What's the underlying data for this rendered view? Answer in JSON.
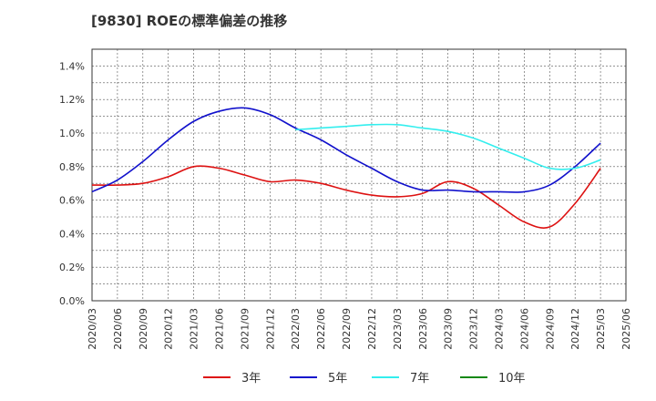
{
  "chart_data": {
    "type": "line",
    "title": "[9830]  ROEの標準偏差の推移",
    "xlabel": "",
    "ylabel": "",
    "ylim": [
      0,
      1.5
    ],
    "y_ticks": [
      "0.0%",
      "0.2%",
      "0.4%",
      "0.6%",
      "0.8%",
      "1.0%",
      "1.2%",
      "1.4%"
    ],
    "x_ticks": [
      "2020/03",
      "2020/06",
      "2020/09",
      "2020/12",
      "2021/03",
      "2021/06",
      "2021/09",
      "2021/12",
      "2022/03",
      "2022/06",
      "2022/09",
      "2022/12",
      "2023/03",
      "2023/06",
      "2023/09",
      "2023/12",
      "2024/03",
      "2024/06",
      "2024/09",
      "2024/12",
      "2025/03",
      "2025/06"
    ],
    "grid": true,
    "legend_position": "bottom",
    "series": [
      {
        "name": "3年",
        "color": "#dd1111",
        "points": [
          [
            "2020/03",
            0.69
          ],
          [
            "2020/06",
            0.69
          ],
          [
            "2020/09",
            0.7
          ],
          [
            "2020/12",
            0.74
          ],
          [
            "2021/03",
            0.8
          ],
          [
            "2021/06",
            0.79
          ],
          [
            "2021/09",
            0.75
          ],
          [
            "2021/12",
            0.71
          ],
          [
            "2022/03",
            0.72
          ],
          [
            "2022/06",
            0.7
          ],
          [
            "2022/09",
            0.66
          ],
          [
            "2022/12",
            0.63
          ],
          [
            "2023/03",
            0.62
          ],
          [
            "2023/06",
            0.64
          ],
          [
            "2023/09",
            0.71
          ],
          [
            "2023/12",
            0.67
          ],
          [
            "2024/03",
            0.57
          ],
          [
            "2024/06",
            0.47
          ],
          [
            "2024/09",
            0.44
          ],
          [
            "2024/12",
            0.58
          ],
          [
            "2025/03",
            0.79
          ]
        ]
      },
      {
        "name": "5年",
        "color": "#1111cc",
        "points": [
          [
            "2020/03",
            0.65
          ],
          [
            "2020/06",
            0.72
          ],
          [
            "2020/09",
            0.83
          ],
          [
            "2020/12",
            0.96
          ],
          [
            "2021/03",
            1.07
          ],
          [
            "2021/06",
            1.13
          ],
          [
            "2021/09",
            1.15
          ],
          [
            "2021/12",
            1.11
          ],
          [
            "2022/03",
            1.03
          ],
          [
            "2022/06",
            0.96
          ],
          [
            "2022/09",
            0.87
          ],
          [
            "2022/12",
            0.79
          ],
          [
            "2023/03",
            0.71
          ],
          [
            "2023/06",
            0.66
          ],
          [
            "2023/09",
            0.66
          ],
          [
            "2023/12",
            0.65
          ],
          [
            "2024/03",
            0.65
          ],
          [
            "2024/06",
            0.65
          ],
          [
            "2024/09",
            0.69
          ],
          [
            "2024/12",
            0.8
          ],
          [
            "2025/03",
            0.94
          ]
        ]
      },
      {
        "name": "7年",
        "color": "#33eeee",
        "points": [
          [
            "2022/03",
            1.02
          ],
          [
            "2022/06",
            1.03
          ],
          [
            "2022/09",
            1.04
          ],
          [
            "2022/12",
            1.05
          ],
          [
            "2023/03",
            1.05
          ],
          [
            "2023/06",
            1.03
          ],
          [
            "2023/09",
            1.01
          ],
          [
            "2023/12",
            0.97
          ],
          [
            "2024/03",
            0.91
          ],
          [
            "2024/06",
            0.85
          ],
          [
            "2024/09",
            0.79
          ],
          [
            "2024/12",
            0.79
          ],
          [
            "2025/03",
            0.84
          ]
        ]
      },
      {
        "name": "10年",
        "color": "#118811",
        "points": []
      }
    ]
  }
}
